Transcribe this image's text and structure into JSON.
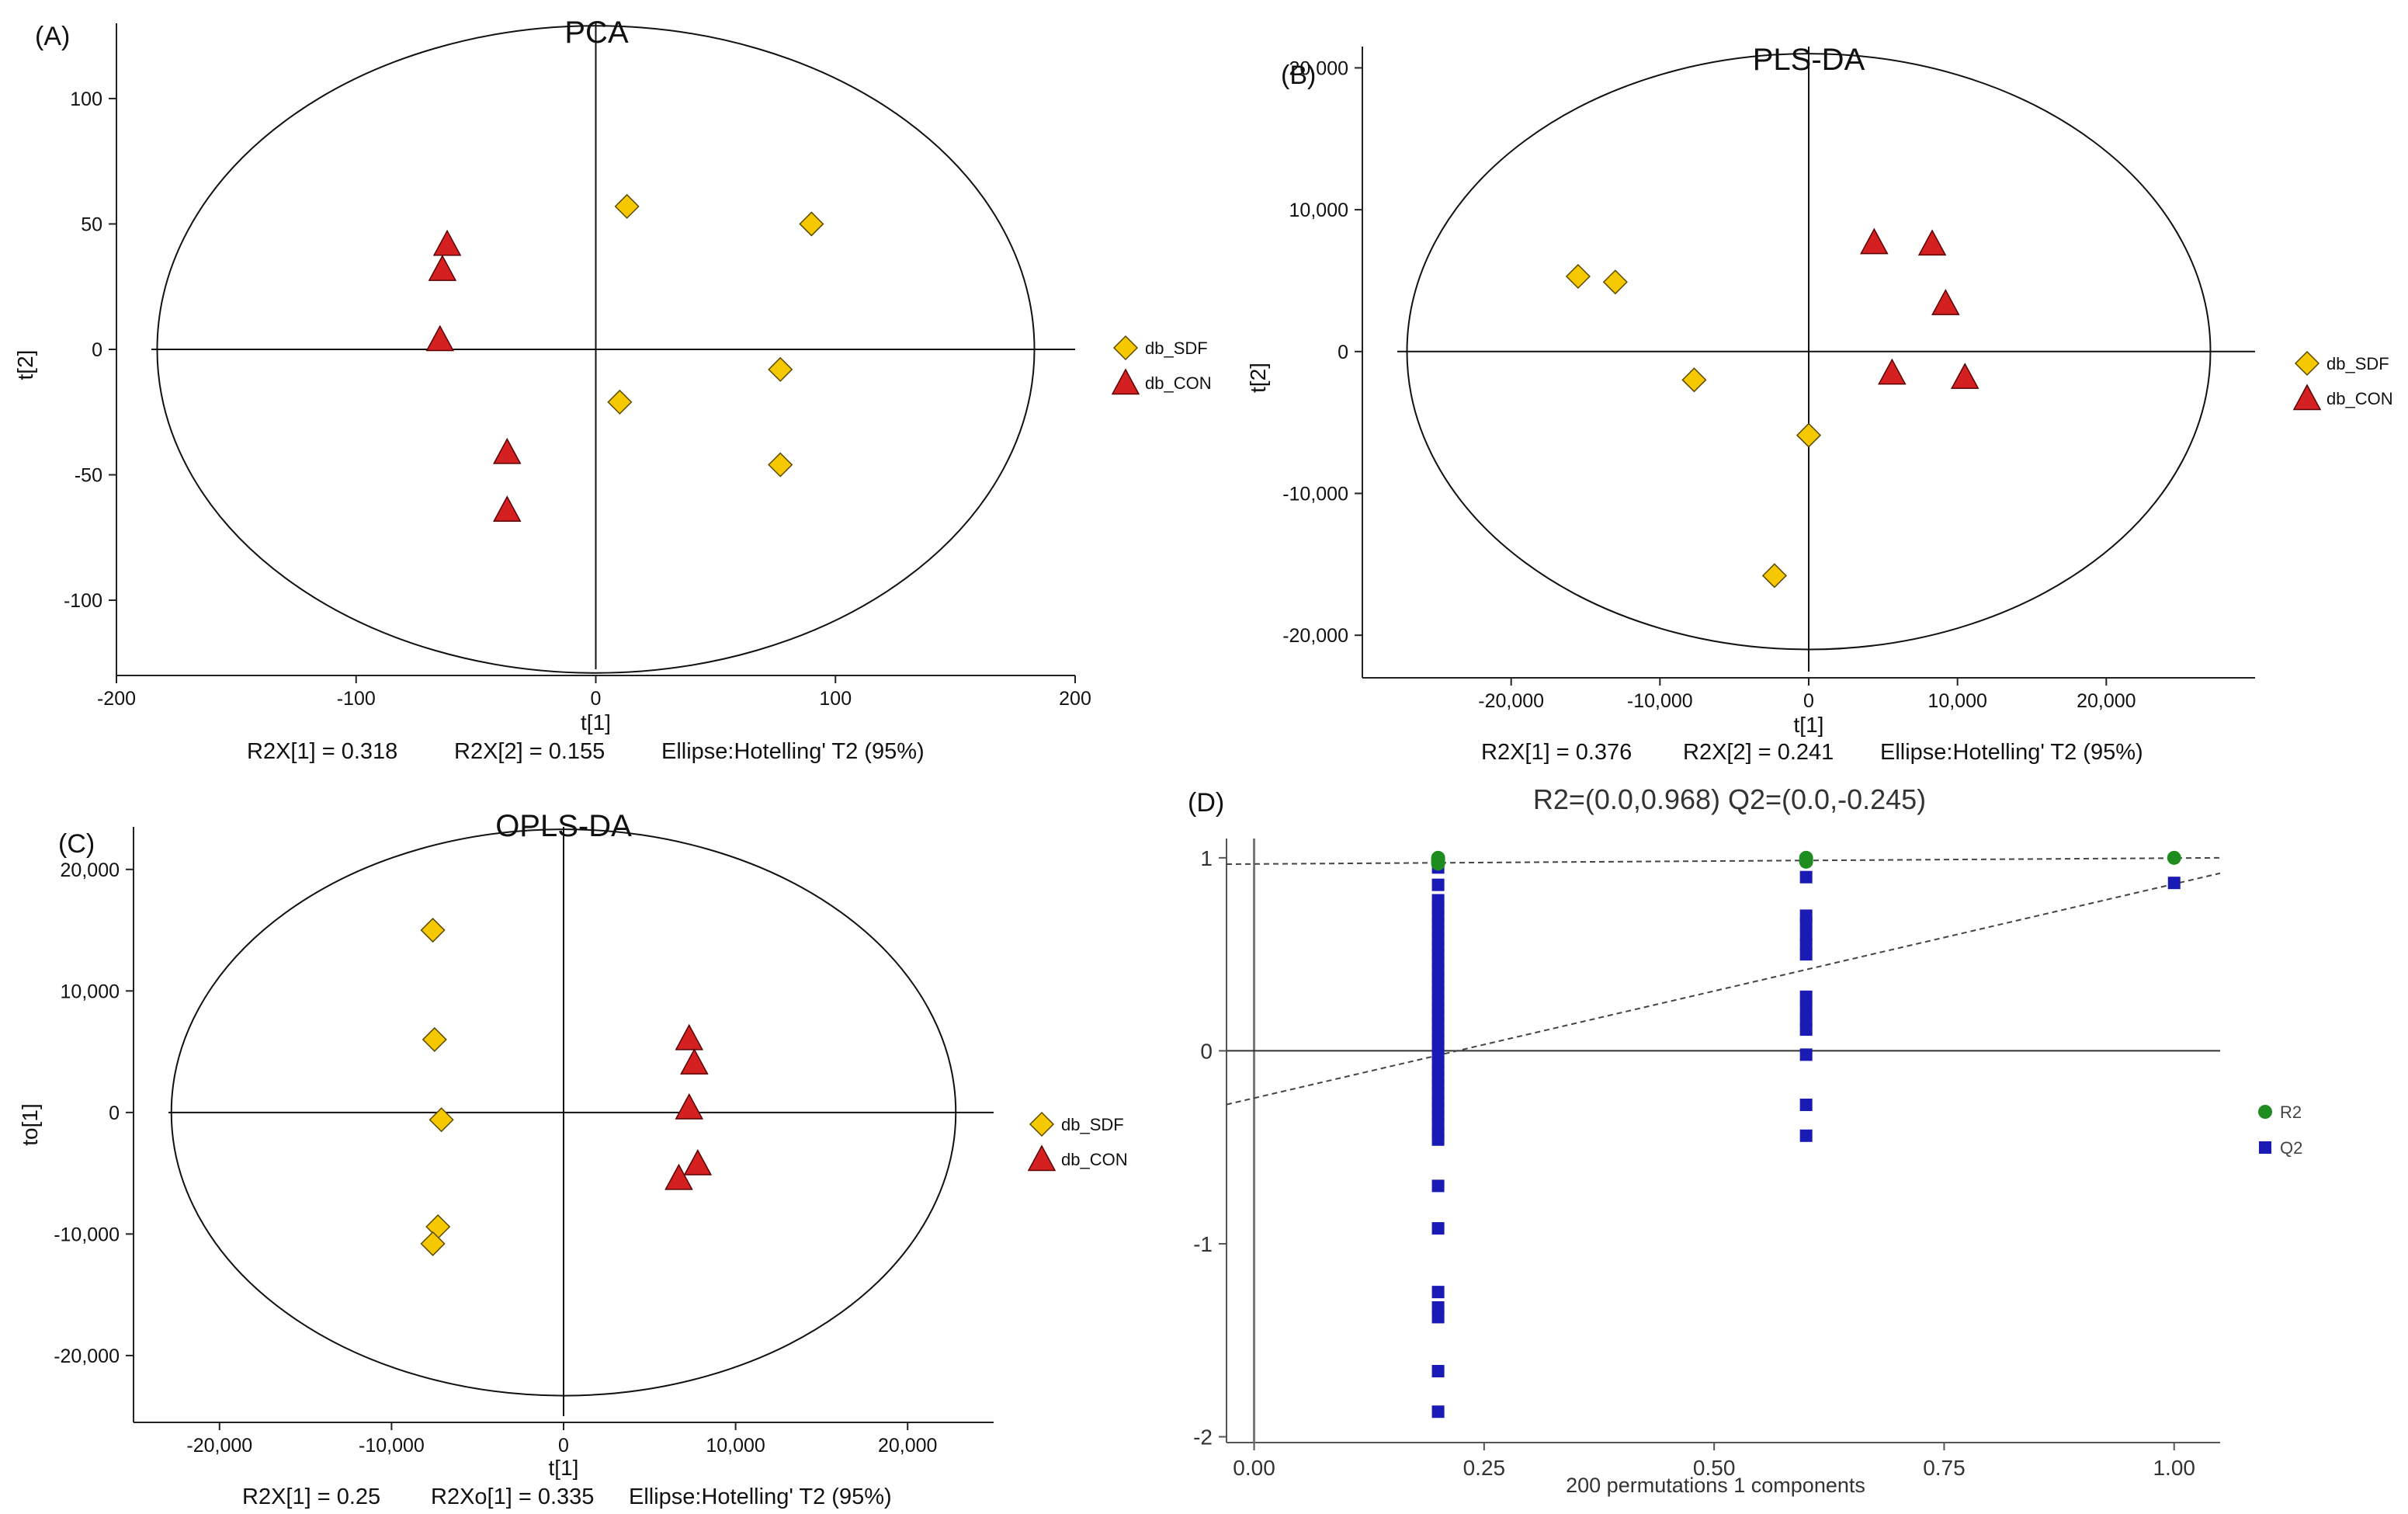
{
  "chart_data": [
    {
      "id": "A",
      "type": "scatter",
      "panel_label": "(A)",
      "title": "PCA",
      "xlabel": "t[1]",
      "ylabel": "t[2]",
      "xlim": [
        -200,
        200
      ],
      "ylim": [
        -130,
        130
      ],
      "xticks": [
        -200,
        -100,
        0,
        100,
        200
      ],
      "xtick_labels": [
        "-200",
        "-100",
        "0",
        "100",
        "200"
      ],
      "yticks": [
        -100,
        -50,
        0,
        50,
        100
      ],
      "ytick_labels": [
        "-100",
        "-50",
        "0",
        "50",
        "100"
      ],
      "ellipse": {
        "rx": 183,
        "ry": 129
      },
      "stats": {
        "r2x1": "R2X[1]  =  0.318",
        "r2x2": "R2X[2]  =  0.155",
        "ellipse": "Ellipse:Hotelling' T2 (95%)"
      },
      "legend": [
        "db_SDF",
        "db_CON"
      ],
      "series": [
        {
          "name": "db_SDF",
          "marker": "diamond",
          "color": "#F5C800",
          "points": [
            [
              13,
              57
            ],
            [
              90,
              50
            ],
            [
              77,
              -8
            ],
            [
              10,
              -21
            ],
            [
              77,
              -46
            ]
          ]
        },
        {
          "name": "db_CON",
          "marker": "triangle",
          "color": "#D42020",
          "points": [
            [
              -62,
              42
            ],
            [
              -64,
              32
            ],
            [
              -65,
              4
            ],
            [
              -37,
              -41
            ],
            [
              -37,
              -64
            ]
          ]
        }
      ]
    },
    {
      "id": "B",
      "type": "scatter",
      "panel_label": "(B)",
      "title": "PLS-DA",
      "xlabel": "t[1]",
      "ylabel": "t[2]",
      "xlim": [
        -30000,
        30000
      ],
      "ylim": [
        -23000,
        21500
      ],
      "xticks": [
        -20000,
        -10000,
        0,
        10000,
        20000
      ],
      "xtick_labels": [
        "-20,000",
        "-10,000",
        "0",
        "10,000",
        "20,000"
      ],
      "yticks": [
        -20000,
        -10000,
        0,
        10000,
        20000
      ],
      "ytick_labels": [
        "-20,000",
        "-10,000",
        "0",
        "10,000",
        "20,000"
      ],
      "ellipse": {
        "rx": 27000,
        "ry": 21000
      },
      "stats": {
        "r2x1": "R2X[1]  =  0.376",
        "r2x2": "R2X[2]  =  0.241",
        "ellipse": "Ellipse:Hotelling' T2 (95%)"
      },
      "legend": [
        "db_SDF",
        "db_CON"
      ],
      "series": [
        {
          "name": "db_SDF",
          "marker": "diamond",
          "color": "#F5C800",
          "points": [
            [
              -15500,
              5300
            ],
            [
              -13000,
              4900
            ],
            [
              -7700,
              -2000
            ],
            [
              0,
              -5900
            ],
            [
              -2300,
              -15800
            ]
          ]
        },
        {
          "name": "db_CON",
          "marker": "triangle",
          "color": "#D42020",
          "points": [
            [
              4400,
              7700
            ],
            [
              8300,
              7600
            ],
            [
              9200,
              3400
            ],
            [
              5600,
              -1500
            ],
            [
              10500,
              -1800
            ]
          ]
        }
      ]
    },
    {
      "id": "C",
      "type": "scatter",
      "panel_label": "(C)",
      "title": "OPLS-DA",
      "xlabel": "t[1]",
      "ylabel": "to[1]",
      "xlim": [
        -25000,
        25000
      ],
      "ylim": [
        -25500,
        23500
      ],
      "xticks": [
        -20000,
        -10000,
        0,
        10000,
        20000
      ],
      "xtick_labels": [
        "-20,000",
        "-10,000",
        "0",
        "10,000",
        "20,000"
      ],
      "yticks": [
        -20000,
        -10000,
        0,
        10000,
        20000
      ],
      "ytick_labels": [
        "-20,000",
        "-10,000",
        "0",
        "10,000",
        "20,000"
      ],
      "ellipse": {
        "rx": 22800,
        "ry": 23300
      },
      "stats": {
        "r2x1": "R2X[1]  =  0.25",
        "r2x2": "R2Xo[1]  =  0.335",
        "ellipse": "Ellipse:Hotelling' T2 (95%)"
      },
      "legend": [
        "db_SDF",
        "db_CON"
      ],
      "series": [
        {
          "name": "db_SDF",
          "marker": "diamond",
          "color": "#F5C800",
          "points": [
            [
              -7600,
              15000
            ],
            [
              -7500,
              6000
            ],
            [
              -7100,
              -600
            ],
            [
              -7300,
              -9400
            ],
            [
              -7600,
              -10800
            ]
          ]
        },
        {
          "name": "db_CON",
          "marker": "triangle",
          "color": "#D42020",
          "points": [
            [
              7300,
              6100
            ],
            [
              7600,
              4100
            ],
            [
              7300,
              400
            ],
            [
              7800,
              -4200
            ],
            [
              6700,
              -5400
            ]
          ]
        }
      ]
    },
    {
      "id": "D",
      "type": "scatter",
      "panel_label": "(D)",
      "title": "R2=(0.0,0.968)    Q2=(0.0,-0.245)",
      "xlabel": "200 permutations 1 components",
      "xlim": [
        -0.03,
        1.05
      ],
      "ylim": [
        -2.03,
        1.1
      ],
      "xticks": [
        0,
        0.25,
        0.5,
        0.75,
        1
      ],
      "xtick_labels": [
        "0.00",
        "0.25",
        "0.50",
        "0.75",
        "1.00"
      ],
      "yticks": [
        -2,
        -1,
        0,
        1
      ],
      "ytick_labels": [
        "-2",
        "-1",
        "0",
        "1"
      ],
      "legend": [
        "R2",
        "Q2"
      ],
      "regression_lines": [
        {
          "name": "R2",
          "intercept": 0.968,
          "end": [
            1.05,
            1.0
          ]
        },
        {
          "name": "Q2",
          "intercept": -0.245,
          "end": [
            1.05,
            0.92
          ]
        }
      ],
      "series": [
        {
          "name": "R2",
          "marker": "circle",
          "color": "#1E8C1E",
          "points": [
            [
              0.2,
              1.0
            ],
            [
              0.2,
              0.99
            ],
            [
              0.2,
              0.98
            ],
            [
              0.2,
              0.97
            ],
            [
              0.6,
              1.0
            ],
            [
              0.6,
              0.99
            ],
            [
              0.6,
              0.98
            ],
            [
              1.0,
              1.0
            ]
          ]
        },
        {
          "name": "Q2",
          "marker": "square",
          "color": "#1A1AB5",
          "points": [
            [
              0.2,
              0.95
            ],
            [
              0.2,
              0.86
            ],
            [
              0.2,
              0.78
            ],
            [
              0.2,
              0.74
            ],
            [
              0.2,
              0.7
            ],
            [
              0.2,
              0.66
            ],
            [
              0.2,
              0.62
            ],
            [
              0.2,
              0.58
            ],
            [
              0.2,
              0.54
            ],
            [
              0.2,
              0.5
            ],
            [
              0.2,
              0.46
            ],
            [
              0.2,
              0.42
            ],
            [
              0.2,
              0.38
            ],
            [
              0.2,
              0.34
            ],
            [
              0.2,
              0.3
            ],
            [
              0.2,
              0.26
            ],
            [
              0.2,
              0.22
            ],
            [
              0.2,
              0.18
            ],
            [
              0.2,
              0.14
            ],
            [
              0.2,
              0.1
            ],
            [
              0.2,
              0.06
            ],
            [
              0.2,
              0.02
            ],
            [
              0.2,
              -0.02
            ],
            [
              0.2,
              -0.06
            ],
            [
              0.2,
              -0.1
            ],
            [
              0.2,
              -0.14
            ],
            [
              0.2,
              -0.18
            ],
            [
              0.2,
              -0.22
            ],
            [
              0.2,
              -0.26
            ],
            [
              0.2,
              -0.3
            ],
            [
              0.2,
              -0.34
            ],
            [
              0.2,
              -0.38
            ],
            [
              0.2,
              -0.42
            ],
            [
              0.2,
              -0.46
            ],
            [
              0.2,
              -0.7
            ],
            [
              0.2,
              -0.92
            ],
            [
              0.2,
              -1.25
            ],
            [
              0.2,
              -1.33
            ],
            [
              0.2,
              -1.38
            ],
            [
              0.2,
              -1.66
            ],
            [
              0.2,
              -1.87
            ],
            [
              0.6,
              0.9
            ],
            [
              0.6,
              0.7
            ],
            [
              0.6,
              0.66
            ],
            [
              0.6,
              0.6
            ],
            [
              0.6,
              0.55
            ],
            [
              0.6,
              0.5
            ],
            [
              0.6,
              0.28
            ],
            [
              0.6,
              0.22
            ],
            [
              0.6,
              0.16
            ],
            [
              0.6,
              0.11
            ],
            [
              0.6,
              -0.02
            ],
            [
              0.6,
              -0.28
            ],
            [
              0.6,
              -0.44
            ],
            [
              1.0,
              0.87
            ]
          ]
        }
      ]
    }
  ]
}
